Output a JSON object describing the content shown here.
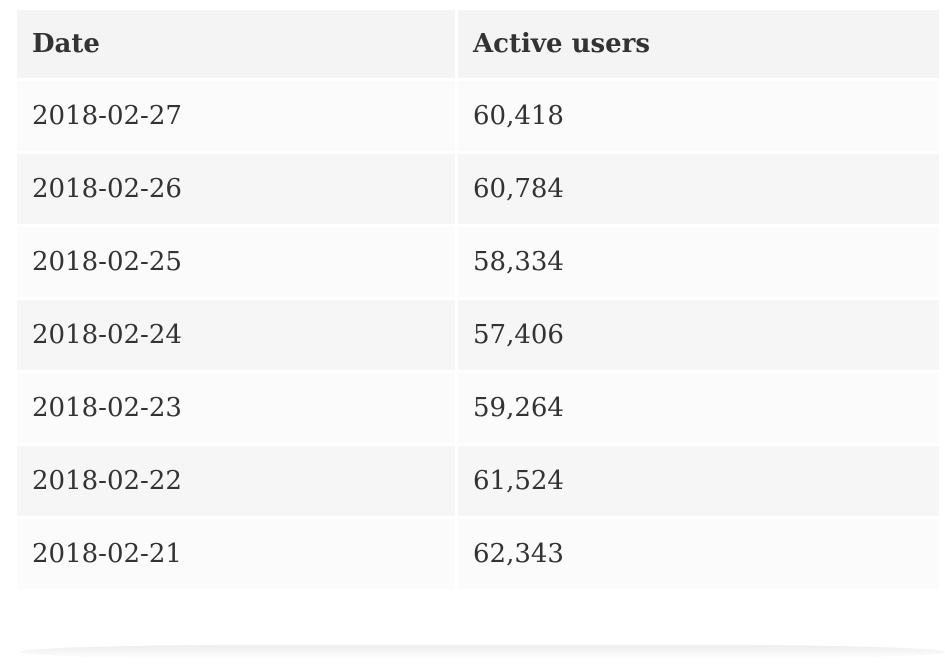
{
  "table": {
    "headers": [
      "Date",
      "Active users"
    ],
    "rows": [
      [
        "2018-02-27",
        "60,418"
      ],
      [
        "2018-02-26",
        "60,784"
      ],
      [
        "2018-02-25",
        "58,334"
      ],
      [
        "2018-02-24",
        "57,406"
      ],
      [
        "2018-02-23",
        "59,264"
      ],
      [
        "2018-02-22",
        "61,524"
      ],
      [
        "2018-02-21",
        "62,343"
      ]
    ]
  }
}
